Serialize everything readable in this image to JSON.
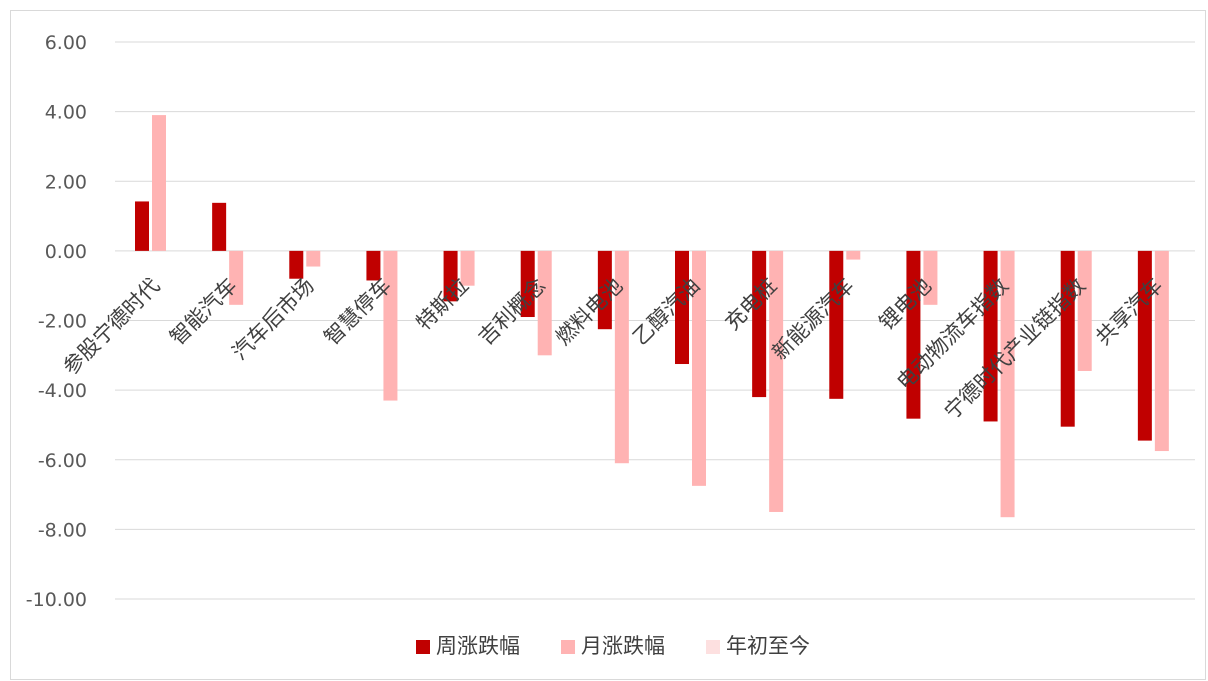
{
  "chart_data": {
    "type": "bar",
    "title": "",
    "xlabel": "",
    "ylabel": "",
    "ylim": [
      -10,
      6
    ],
    "yticks": [
      "6.00",
      "4.00",
      "2.00",
      "0.00",
      "-2.00",
      "-4.00",
      "-6.00",
      "-8.00",
      "-10.00"
    ],
    "grid": true,
    "legend_position": "bottom",
    "categories": [
      "参股宁德时代",
      "智能汽车",
      "汽车后市场",
      "智慧停车",
      "特斯拉",
      "吉利概念",
      "燃料电池",
      "乙醇汽油",
      "充电桩",
      "新能源汽车",
      "锂电池",
      "电动物流车指数",
      "宁德时代产业链指数",
      "共享汽车"
    ],
    "series": [
      {
        "name": "周涨跌幅",
        "color": "#c00000",
        "values": [
          1.42,
          1.38,
          -0.8,
          -0.85,
          -1.45,
          -1.9,
          -2.25,
          -3.25,
          -4.2,
          -4.25,
          -4.82,
          -4.9,
          -5.05,
          -5.45
        ]
      },
      {
        "name": "月涨跌幅",
        "color": "#ffb3b3",
        "values": [
          3.9,
          -1.55,
          -0.45,
          -4.3,
          -1.0,
          -3.0,
          -6.1,
          -6.75,
          -7.5,
          -0.25,
          -1.55,
          -7.65,
          -3.45,
          -5.75
        ]
      },
      {
        "name": "年初至今",
        "color": "#fde0e0",
        "values": [
          null,
          null,
          null,
          null,
          null,
          null,
          null,
          null,
          null,
          null,
          null,
          null,
          null,
          null
        ]
      }
    ]
  }
}
